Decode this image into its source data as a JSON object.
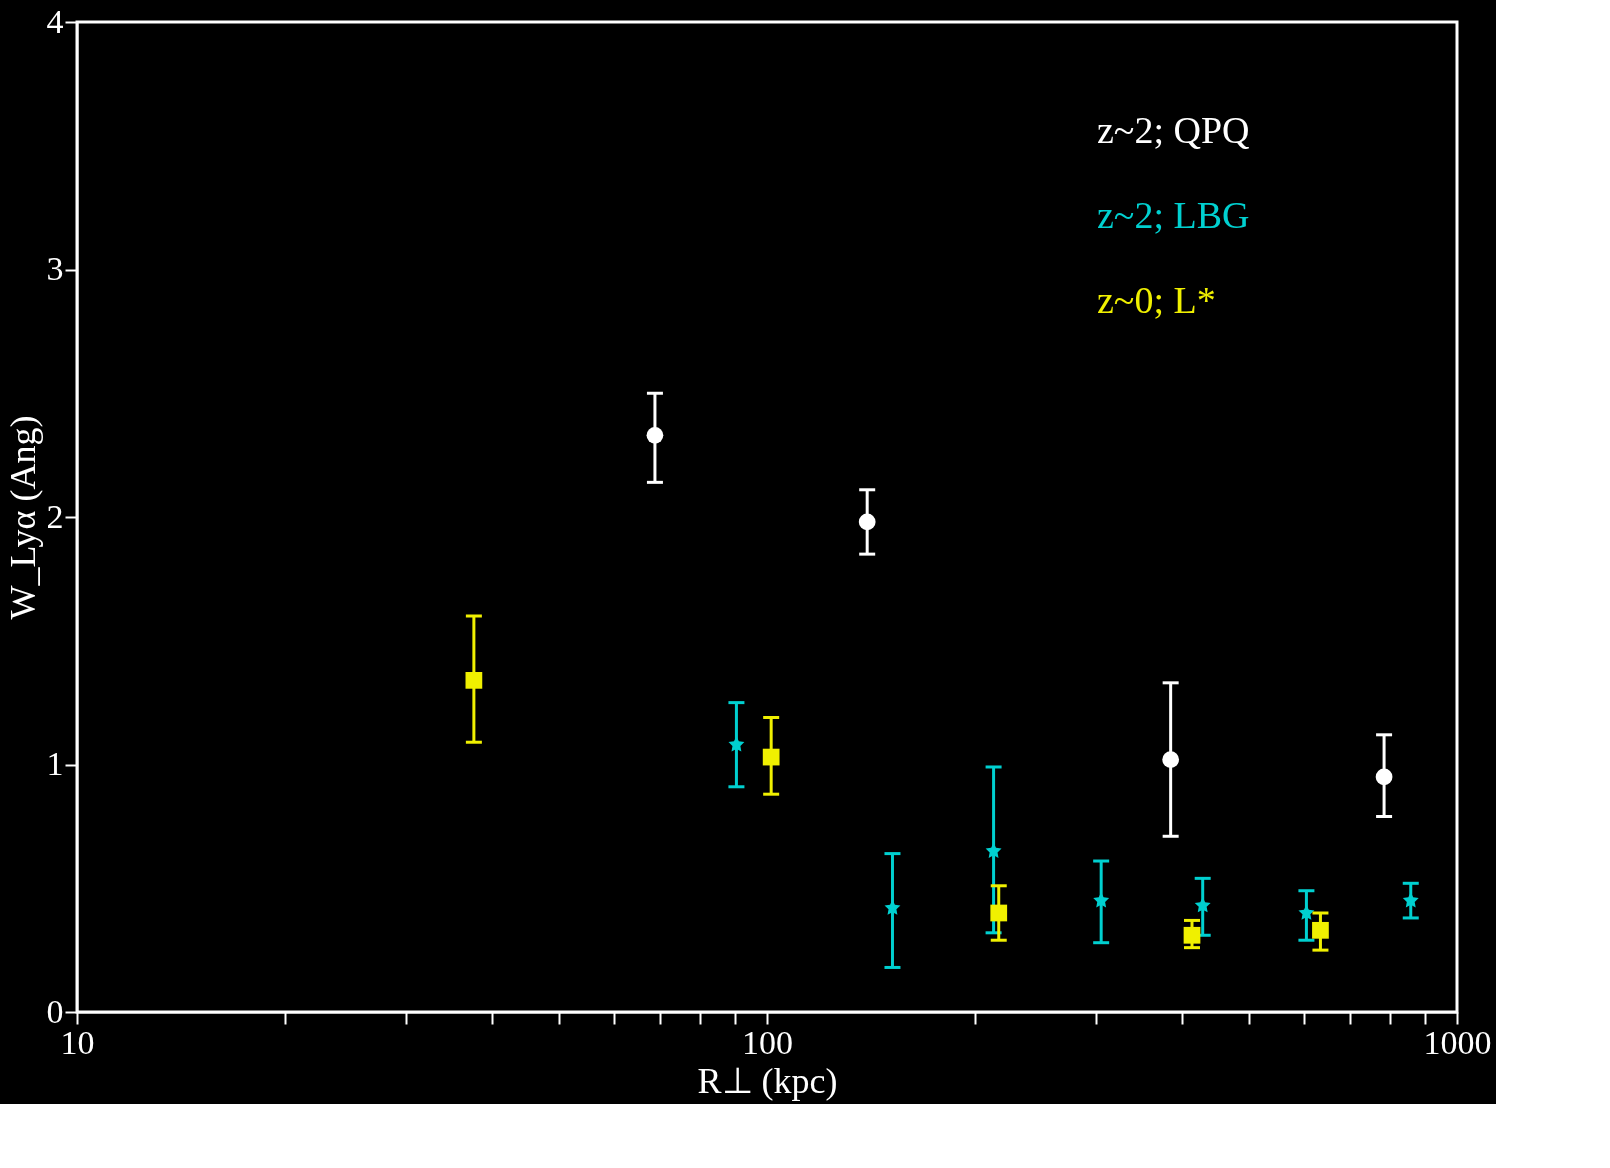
{
  "chart_data": {
    "type": "scatter",
    "xlabel": "R⊥ (kpc)",
    "ylabel": "W_Lyα (Ang)",
    "log": "x",
    "xlim": [
      10,
      1000
    ],
    "ylim": [
      0,
      4
    ],
    "xticks": [
      10,
      {
        "value": 20,
        "label": null
      },
      {
        "value": 30,
        "label": null
      },
      {
        "value": 40,
        "label": null
      },
      {
        "value": 50,
        "label": null
      },
      {
        "value": 60,
        "label": null
      },
      {
        "value": 70,
        "label": null
      },
      {
        "value": 80,
        "label": null
      },
      {
        "value": 90,
        "label": null
      },
      100,
      {
        "value": 200,
        "label": null
      },
      {
        "value": 300,
        "label": null
      },
      {
        "value": 400,
        "label": null
      },
      {
        "value": 500,
        "label": null
      },
      {
        "value": 600,
        "label": null
      },
      {
        "value": 700,
        "label": null
      },
      {
        "value": 800,
        "label": null
      },
      {
        "value": 900,
        "label": null
      },
      1000
    ],
    "yticks": [
      0,
      1,
      2,
      3,
      4
    ],
    "grid": false,
    "legend": "top right",
    "series": [
      {
        "name": "z~2; QPQ",
        "color": "#ffffff",
        "marker": "circle",
        "x": [
          68.8,
          139.7,
          384.6,
          784
        ],
        "values": [
          2.33,
          1.98,
          1.02,
          0.95
        ],
        "errors": [
          [
            2.14,
            2.5
          ],
          [
            1.85,
            2.11
          ],
          [
            0.71,
            1.33
          ],
          [
            0.79,
            1.12
          ]
        ]
      },
      {
        "name": "z~2; LBG",
        "color": "#00d0d0",
        "marker": "star",
        "x": [
          90.3,
          152,
          213,
          305,
          428,
          605,
          857
        ],
        "values": [
          1.08,
          0.42,
          0.65,
          0.45,
          0.43,
          0.4,
          0.45
        ],
        "errors": [
          [
            0.91,
            1.25
          ],
          [
            0.18,
            0.64
          ],
          [
            0.32,
            0.99
          ],
          [
            0.28,
            0.61
          ],
          [
            0.31,
            0.54
          ],
          [
            0.29,
            0.49
          ],
          [
            0.38,
            0.52
          ]
        ]
      },
      {
        "name": "z~0; L*",
        "color": "#f0f000",
        "marker": "square",
        "x": [
          37.6,
          101.4,
          216.7,
          413,
          634
        ],
        "values": [
          1.34,
          1.03,
          0.4,
          0.31,
          0.33
        ],
        "errors": [
          [
            1.09,
            1.6
          ],
          [
            0.88,
            1.19
          ],
          [
            0.29,
            0.51
          ],
          [
            0.26,
            0.37
          ],
          [
            0.25,
            0.4
          ]
        ]
      }
    ]
  }
}
